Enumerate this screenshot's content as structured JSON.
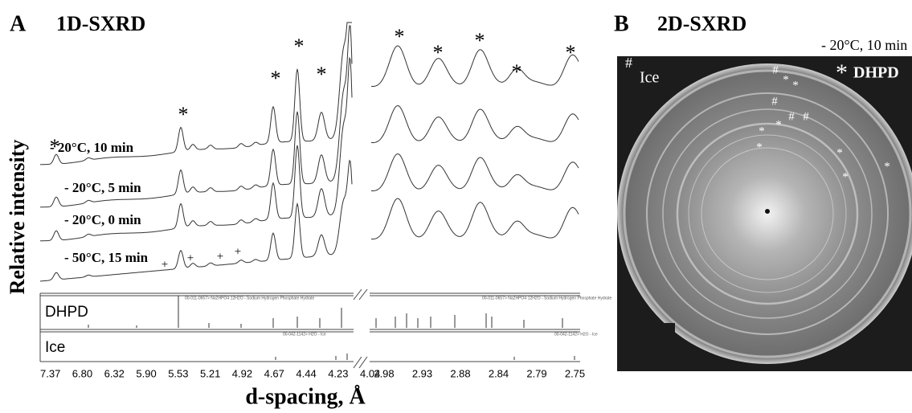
{
  "panel_a": {
    "label": "A",
    "title": "1D-SXRD",
    "y_label": "Relative intensity",
    "x_label": "d-spacing, Å",
    "traces": [
      "- 20°C, 10 min",
      "- 20°C, 5 min",
      "- 20°C, 0 min",
      "- 50°C, 15 min"
    ],
    "peak_marks": [
      "*",
      "*",
      "*",
      "*",
      "*",
      "*",
      "*",
      "*",
      "*",
      "*"
    ],
    "ice_marks": [
      "+",
      "+",
      "+",
      "+"
    ],
    "references": [
      {
        "name": "DHPD",
        "card": "00-011-0657> Na2HPO4·12H2O - Sodium Hydrogen Phosphate Hydrate"
      },
      {
        "name": "Ice",
        "card": "00-042-1142> H2O - Ice"
      }
    ],
    "x_ticks_left": [
      "7.37",
      "6.80",
      "6.32",
      "5.90",
      "5.53",
      "5.21",
      "4.92",
      "4.67",
      "4.44",
      "4.23",
      "4.04"
    ],
    "x_ticks_right": [
      "2.98",
      "2.93",
      "2.88",
      "2.84",
      "2.79",
      "2.75"
    ]
  },
  "panel_b": {
    "label": "B",
    "title": "2D-SXRD",
    "condition": "- 20°C, 10 min",
    "legend": [
      {
        "symbol": "#",
        "text": "Ice"
      },
      {
        "symbol": "*",
        "text": "DHPD"
      }
    ],
    "ring_marks": [
      "#",
      "#",
      "#",
      "#",
      "*",
      "*",
      "*",
      "*",
      "*",
      "*",
      "*",
      "*"
    ]
  }
}
